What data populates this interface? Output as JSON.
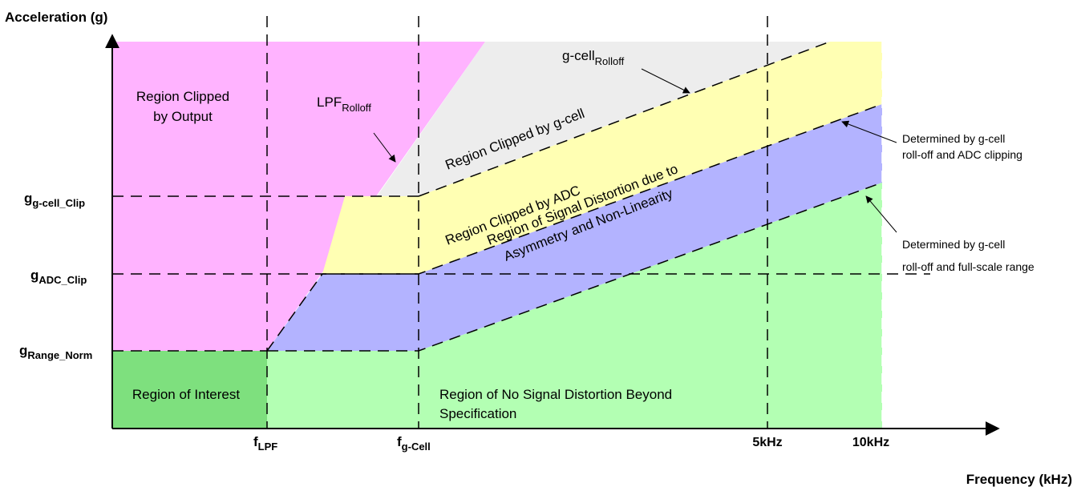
{
  "axes": {
    "y_label": "Acceleration (g)",
    "x_label": "Frequency (kHz)"
  },
  "y_ticks": {
    "g_cell_clip": {
      "base": "g",
      "sub": "g-cell_Clip"
    },
    "adc_clip": {
      "base": "g",
      "sub": "ADC_Clip"
    },
    "range_norm": {
      "base": "g",
      "sub": "Range_Norm"
    }
  },
  "x_ticks": {
    "lpf": {
      "base": "f",
      "sub": "LPF"
    },
    "gcell": {
      "base": "f",
      "sub": "g-Cell"
    },
    "five_khz": "5kHz",
    "ten_khz": "10kHz"
  },
  "regions": {
    "clipped_by_output": [
      "Region Clipped",
      "by Output"
    ],
    "interest": "Region of Interest",
    "no_distortion": [
      "Region of No Signal Distortion Beyond",
      "Specification"
    ],
    "clipped_by_gcell": "Region Clipped by g-cell",
    "clipped_by_adc": "Region Clipped by ADC",
    "distortion": [
      "Region of Signal Distortion due to",
      "Asymmetry and Non-Linearity"
    ]
  },
  "callouts": {
    "lpf_rolloff": {
      "base": "LPF",
      "sub": "Rolloff"
    },
    "gcell_rolloff": {
      "base": "g-cell",
      "sub": "Rolloff"
    },
    "adc_boundary": [
      "Determined by g-cell",
      "roll-off and ADC clipping"
    ],
    "range_boundary": [
      "Determined by g-cell",
      "roll-off and full-scale range"
    ]
  },
  "colors": {
    "output_region": "#ffb3ff",
    "gcell_region": "#ededed",
    "adc_region": "#ffffb3",
    "distortion_region": "#b3b3ff",
    "no_distortion_region": "#b3ffb3",
    "interest_region": "#7ee07e"
  }
}
